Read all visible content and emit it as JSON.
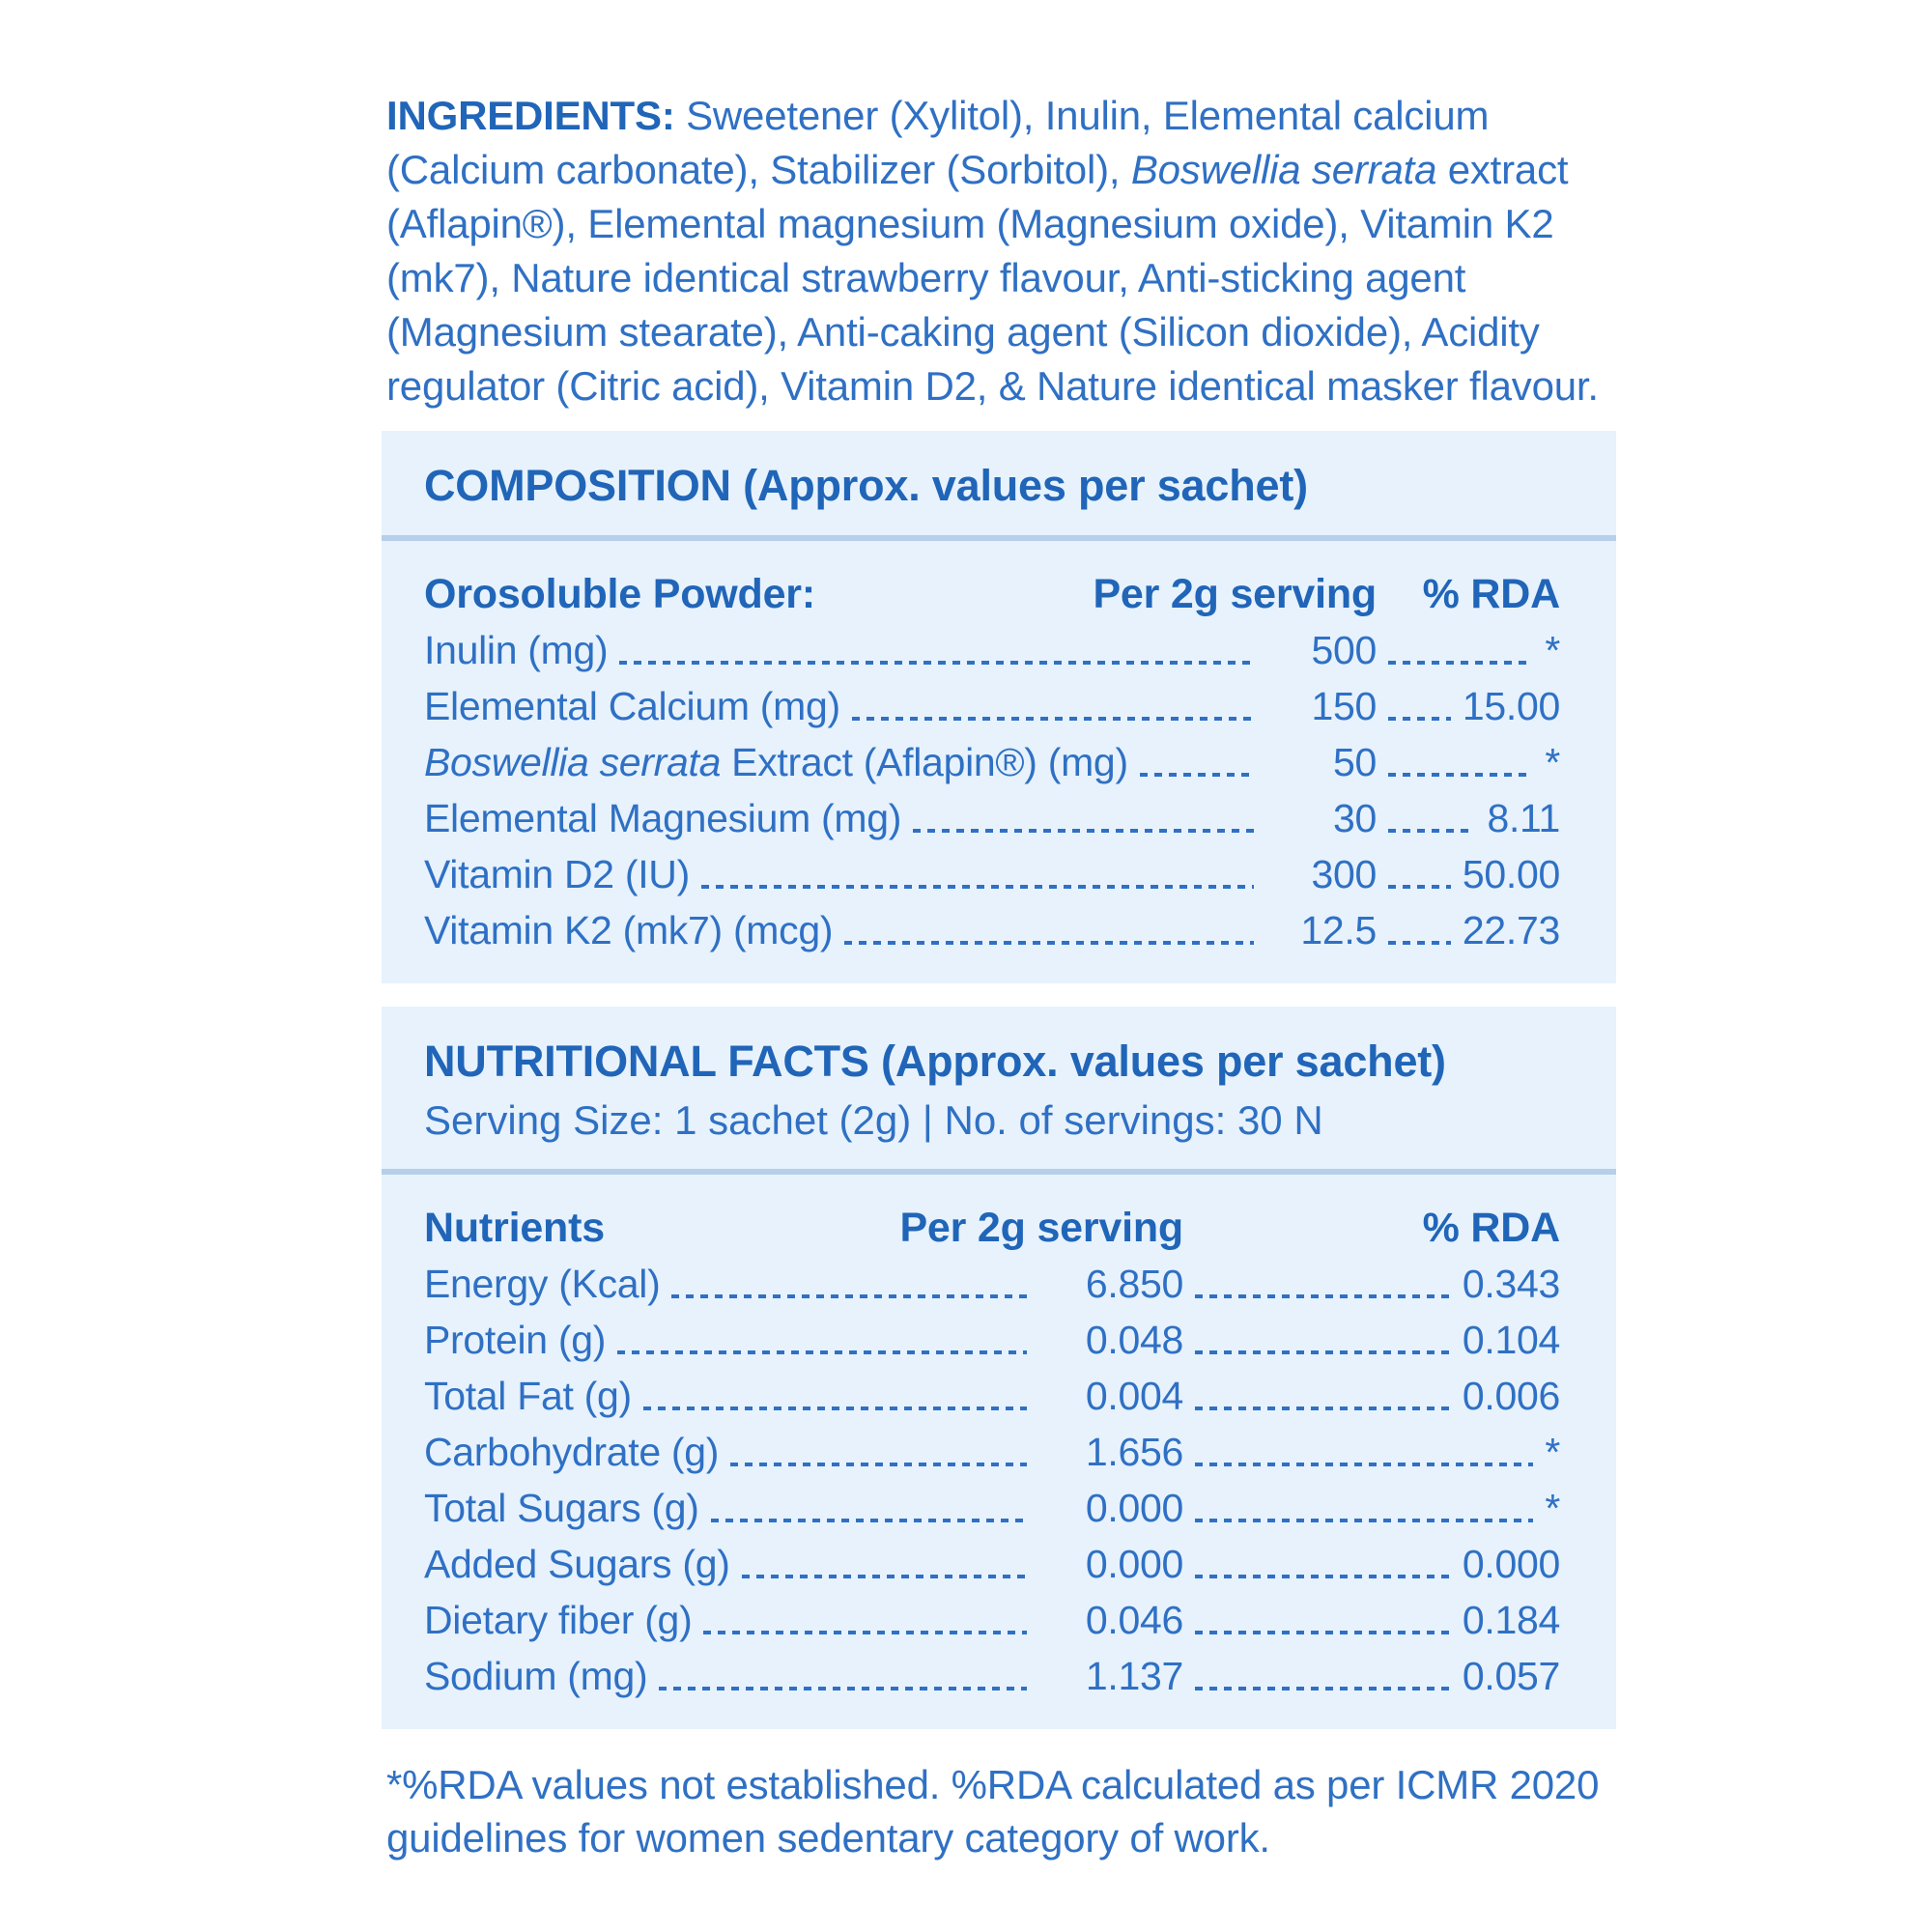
{
  "colors": {
    "page_bg": "#ffffff",
    "box_bg": "#e7f2fc",
    "divider": "#b6cfeb",
    "heading_blue": "#2065b8",
    "text_blue": "#2f70c4"
  },
  "ingredients": {
    "label": "INGREDIENTS:",
    "part1": "Sweetener (Xylitol), Inulin, Elemental calcium (Calcium carbonate), Stabilizer (Sorbitol),",
    "italic": "Boswellia serrata",
    "part2": "extract (Aflapin®), Elemental magnesium (Magnesium oxide), Vitamin K2 (mk7), Nature identical strawberry flavour, Anti-sticking agent (Magnesium stearate), Anti-caking agent (Silicon dioxide), Acidity regulator (Citric acid), Vitamin D2, & Nature identical masker flavour."
  },
  "composition": {
    "title": "COMPOSITION (Approx. values per sachet)",
    "col_label": "Orosoluble Powder:",
    "col_serving": "Per 2g serving",
    "col_rda": "% RDA",
    "rows": [
      {
        "label": "Inulin (mg)",
        "value": "500",
        "rda": "*"
      },
      {
        "label": "Elemental Calcium (mg)",
        "value": "150",
        "rda": "15.00"
      },
      {
        "label_italic": "Boswellia serrata",
        "label": " Extract (Aflapin®) (mg)",
        "value": "50",
        "rda": "*"
      },
      {
        "label": "Elemental Magnesium (mg)",
        "value": "30",
        "rda": "8.11"
      },
      {
        "label": "Vitamin D2 (IU)",
        "value": "300",
        "rda": "50.00"
      },
      {
        "label": "Vitamin K2 (mk7) (mcg)",
        "value": "12.5",
        "rda": "22.73"
      }
    ]
  },
  "nutrition": {
    "title": "NUTRITIONAL FACTS (Approx. values per sachet)",
    "serving_line": "Serving Size: 1 sachet (2g) | No. of servings: 30 N",
    "col_label": "Nutrients",
    "col_serving": "Per 2g serving",
    "col_rda": "% RDA",
    "rows": [
      {
        "label": "Energy (Kcal)",
        "value": "6.850",
        "rda": "0.343"
      },
      {
        "label": "Protein (g)",
        "value": "0.048",
        "rda": "0.104"
      },
      {
        "label": "Total Fat (g)",
        "value": "0.004",
        "rda": "0.006"
      },
      {
        "label": "Carbohydrate (g)",
        "value": "1.656",
        "rda": "*"
      },
      {
        "label": "Total Sugars (g)",
        "value": "0.000",
        "rda": "*"
      },
      {
        "label": "Added Sugars (g)",
        "value": "0.000",
        "rda": "0.000"
      },
      {
        "label": "Dietary fiber (g)",
        "value": "0.046",
        "rda": "0.184"
      },
      {
        "label": "Sodium (mg)",
        "value": "1.137",
        "rda": "0.057"
      }
    ]
  },
  "footnote": "*%RDA values not established. %RDA calculated as per ICMR 2020 guidelines for women sedentary category of work."
}
